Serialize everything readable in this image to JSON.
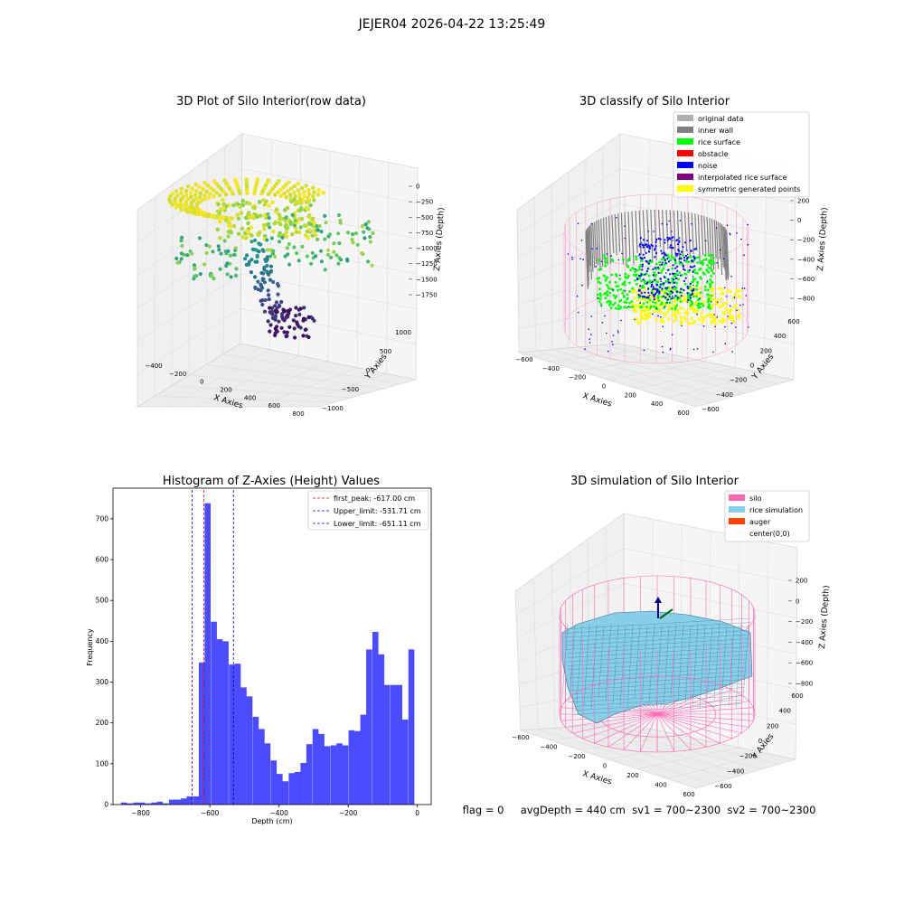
{
  "suptitle": "JEJER04 2026-04-22 13:25:49",
  "panels": {
    "raw": {
      "title": "3D Plot of Silo Interior(row data)",
      "xlabel": "X Axies",
      "ylabel": "Y Axies",
      "zlabel": "Z Axies (Depth)",
      "xticks": [
        "-400",
        "-200",
        "0",
        "200",
        "400",
        "600",
        "800"
      ],
      "yticks": [
        "-1000",
        "-500",
        "0",
        "500",
        "1000"
      ],
      "zticks": [
        "0",
        "-250",
        "-500",
        "-750",
        "-1000",
        "-1250",
        "-1500",
        "-1750"
      ]
    },
    "classify": {
      "title": "3D classify of Silo Interior",
      "xlabel": "X Axies",
      "ylabel": "Y Axies",
      "zlabel": "Z Axies (Depth)",
      "xticks": [
        "-600",
        "-400",
        "-200",
        "0",
        "200",
        "400",
        "600"
      ],
      "yticks": [
        "-600",
        "-400",
        "-200",
        "0",
        "200",
        "400",
        "600"
      ],
      "zticks": [
        "200",
        "0",
        "-200",
        "-400",
        "-600",
        "-800"
      ],
      "legend": [
        {
          "label": "original data",
          "color": "#b0b0b0"
        },
        {
          "label": "inner wall",
          "color": "#808080"
        },
        {
          "label": "rice surface",
          "color": "#00ff00"
        },
        {
          "label": "obstacle",
          "color": "#ff0000"
        },
        {
          "label": "noise",
          "color": "#0000ff"
        },
        {
          "label": "interpolated rice surface",
          "color": "#800080"
        },
        {
          "label": "symmetric generated points",
          "color": "#ffff00"
        }
      ]
    },
    "simulation": {
      "title": "3D simulation of Silo Interior",
      "xlabel": "X Axies",
      "ylabel": "Y Axies",
      "zlabel": "Z Axies (Depth)",
      "xticks": [
        "-600",
        "-400",
        "-200",
        "0",
        "200",
        "400",
        "600"
      ],
      "yticks": [
        "-600",
        "-400",
        "-200",
        "0",
        "200",
        "400",
        "600"
      ],
      "zticks": [
        "200",
        "0",
        "-200",
        "-400",
        "-600",
        "-800"
      ],
      "legend": [
        {
          "label": "silo",
          "color": "#ff69b4"
        },
        {
          "label": "rice simulation",
          "color": "#87ceeb"
        },
        {
          "label": "auger",
          "color": "#ff4500"
        },
        {
          "label": "center(0,0)",
          "color": "#ffffff"
        }
      ]
    }
  },
  "status_line": "flag = 0     avgDepth = 440 cm  sv1 = 700~2300  sv2 = 700~2300",
  "chart_data": {
    "type": "bar",
    "title": "Histogram of Z-Axies (Height) Values",
    "xlabel": "Depth (cm)",
    "ylabel": "Frequency",
    "xlim": [
      -880,
      40
    ],
    "ylim": [
      0,
      775
    ],
    "xticks": [
      -800,
      -600,
      -400,
      -200,
      0
    ],
    "yticks": [
      0,
      100,
      200,
      300,
      400,
      500,
      600,
      700
    ],
    "bin_width": 17.3,
    "bin_starts": [
      -857,
      -840,
      -822,
      -805,
      -788,
      -770,
      -753,
      -736,
      -718,
      -701,
      -684,
      -667,
      -649,
      -632,
      -615,
      -597,
      -580,
      -563,
      -545,
      -528,
      -511,
      -494,
      -476,
      -459,
      -442,
      -424,
      -407,
      -390,
      -372,
      -355,
      -338,
      -321,
      -303,
      -286,
      -269,
      -251,
      -234,
      -217,
      -199,
      -182,
      -165,
      -148,
      -130,
      -113,
      -96,
      -78,
      -61,
      -44,
      -26,
      -9
    ],
    "values": [
      5,
      3,
      5,
      5,
      3,
      5,
      7,
      3,
      12,
      12,
      15,
      20,
      20,
      348,
      738,
      448,
      405,
      400,
      343,
      345,
      287,
      265,
      215,
      185,
      150,
      108,
      75,
      57,
      77,
      80,
      102,
      148,
      185,
      173,
      143,
      145,
      150,
      145,
      182,
      180,
      220,
      380,
      423,
      368,
      293,
      293,
      293,
      208,
      380,
      0
    ],
    "color": "#0000ff",
    "vlines": [
      {
        "label": "first_peak: -617.00 cm",
        "x": -617,
        "color": "#ff0000"
      },
      {
        "label": "Upper_limit: -531.71 cm",
        "x": -531.71,
        "color": "#0000cc"
      },
      {
        "label": "Lower_limit: -651.11 cm",
        "x": -651.11,
        "color": "#0000cc"
      }
    ]
  }
}
